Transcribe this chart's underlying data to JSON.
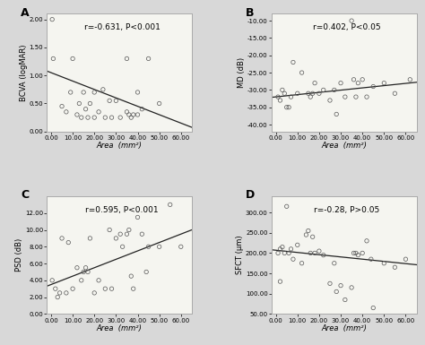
{
  "panels": [
    {
      "label": "A",
      "annotation": "r=-0.631, P<0.001",
      "xlabel": "Area  (mm²)",
      "ylabel": "BCVA (logMAR)",
      "xlim": [
        -2,
        65
      ],
      "ylim": [
        0.0,
        2.1
      ],
      "xtick_vals": [
        0,
        10,
        20,
        30,
        40,
        50,
        60
      ],
      "xtick_labels": [
        "0.00",
        "10.00",
        "20.00",
        "30.00",
        "40.00",
        "50.00",
        "60.00"
      ],
      "ytick_vals": [
        0.0,
        0.5,
        1.0,
        1.5,
        2.0
      ],
      "ytick_labels": [
        "0.00",
        "0.50",
        "1.00",
        "1.50",
        "2.00"
      ],
      "scatter_x": [
        0.5,
        1,
        5,
        7,
        9,
        10,
        12,
        13,
        14,
        15,
        16,
        17,
        18,
        20,
        20,
        22,
        24,
        25,
        27,
        28,
        30,
        32,
        35,
        35,
        36,
        37,
        38,
        40,
        40,
        42,
        45,
        50
      ],
      "scatter_y": [
        2.0,
        1.3,
        0.45,
        0.35,
        0.7,
        1.3,
        0.3,
        0.5,
        0.25,
        0.7,
        0.4,
        0.25,
        0.5,
        0.7,
        0.25,
        0.35,
        0.75,
        0.25,
        0.55,
        0.25,
        0.55,
        0.25,
        1.3,
        0.35,
        0.3,
        0.25,
        0.3,
        0.7,
        0.3,
        0.4,
        1.3,
        0.5
      ],
      "slope": -0.015,
      "intercept": 1.05
    },
    {
      "label": "B",
      "annotation": "r=0.402, P<0.05",
      "xlabel": "Area  (mm²)",
      "ylabel": "MD (dB)",
      "xlim": [
        -2,
        65
      ],
      "ylim": [
        -42,
        -8
      ],
      "xtick_vals": [
        0,
        10,
        20,
        30,
        40,
        50,
        60
      ],
      "xtick_labels": [
        "0.00",
        "10.00",
        "20.00",
        "30.00",
        "40.00",
        "50.00",
        "60.00"
      ],
      "ytick_vals": [
        -40,
        -35,
        -30,
        -25,
        -20,
        -15,
        -10
      ],
      "ytick_labels": [
        "-40.00",
        "-35.00",
        "-30.00",
        "-25.00",
        "-20.00",
        "-15.00",
        "-10.00"
      ],
      "scatter_x": [
        1,
        2,
        3,
        4,
        5,
        6,
        7,
        8,
        10,
        12,
        15,
        16,
        17,
        18,
        20,
        22,
        25,
        27,
        28,
        30,
        32,
        35,
        36,
        37,
        38,
        40,
        42,
        45,
        50,
        55,
        62
      ],
      "scatter_y": [
        -32,
        -33,
        -30,
        -31,
        -35,
        -35,
        -32,
        -22,
        -31,
        -25,
        -31,
        -32,
        -31,
        -28,
        -31,
        -30,
        -33,
        -30,
        -37,
        -28,
        -32,
        -10,
        -27,
        -32,
        -28,
        -27,
        -32,
        -29,
        -28,
        -31,
        -27
      ],
      "slope": 0.065,
      "intercept": -32.0
    },
    {
      "label": "C",
      "annotation": "r=0.595, P<0.001",
      "xlabel": "Area  (mm²)",
      "ylabel": "PSD (dB)",
      "xlim": [
        -2,
        65
      ],
      "ylim": [
        0,
        14
      ],
      "xtick_vals": [
        0,
        10,
        20,
        30,
        40,
        50,
        60
      ],
      "xtick_labels": [
        "0.00",
        "10.00",
        "20.00",
        "30.00",
        "40.00",
        "50.00",
        "60.00"
      ],
      "ytick_vals": [
        0,
        2,
        4,
        6,
        8,
        10,
        12
      ],
      "ytick_labels": [
        "0.00",
        "2.00",
        "4.00",
        "6.00",
        "8.00",
        "10.00",
        "12.00"
      ],
      "scatter_x": [
        0.5,
        2,
        3,
        4,
        5,
        7,
        8,
        10,
        12,
        14,
        15,
        16,
        17,
        18,
        20,
        22,
        25,
        27,
        28,
        30,
        32,
        33,
        35,
        36,
        37,
        38,
        40,
        42,
        44,
        45,
        50,
        55,
        60
      ],
      "scatter_y": [
        4.0,
        3.0,
        2.0,
        2.5,
        9.0,
        2.5,
        8.5,
        3.0,
        5.5,
        4.0,
        5.0,
        5.5,
        5.0,
        9.0,
        2.5,
        4.0,
        3.0,
        10.0,
        3.0,
        9.0,
        9.5,
        8.0,
        9.5,
        10.0,
        4.5,
        3.0,
        11.5,
        9.5,
        5.0,
        8.0,
        8.0,
        13.0,
        8.0
      ],
      "slope": 0.1,
      "intercept": 3.5
    },
    {
      "label": "D",
      "annotation": "r=-0.28, P>0.05",
      "xlabel": "Area  (mm²)",
      "ylabel": "SFCT (μm)",
      "xlim": [
        -2,
        65
      ],
      "ylim": [
        50,
        340
      ],
      "xtick_vals": [
        0,
        10,
        20,
        30,
        40,
        50,
        60
      ],
      "xtick_labels": [
        "0.00",
        "10.00",
        "20.00",
        "30.00",
        "40.00",
        "50.00",
        "60.00"
      ],
      "ytick_vals": [
        50,
        100,
        150,
        200,
        250,
        300
      ],
      "ytick_labels": [
        "50.00",
        "100.00",
        "150.00",
        "200.00",
        "250.00",
        "300.00"
      ],
      "scatter_x": [
        1,
        2,
        2,
        3,
        4,
        5,
        6,
        7,
        8,
        10,
        12,
        14,
        15,
        16,
        17,
        18,
        20,
        22,
        25,
        27,
        28,
        30,
        32,
        35,
        36,
        37,
        38,
        40,
        42,
        44,
        45,
        50,
        55,
        60
      ],
      "scatter_y": [
        200,
        210,
        130,
        215,
        200,
        315,
        200,
        210,
        185,
        220,
        175,
        245,
        255,
        200,
        240,
        200,
        205,
        195,
        125,
        175,
        105,
        120,
        85,
        115,
        200,
        200,
        195,
        200,
        230,
        185,
        65,
        175,
        165,
        185
      ],
      "slope": -0.55,
      "intercept": 207
    }
  ],
  "fig_bg": "#d8d8d8",
  "panel_bg": "#f5f5f0",
  "scatter_color": "none",
  "scatter_edge": "#555555",
  "line_color": "#222222",
  "font_size": 6,
  "label_font_size": 9,
  "tick_font_size": 5
}
